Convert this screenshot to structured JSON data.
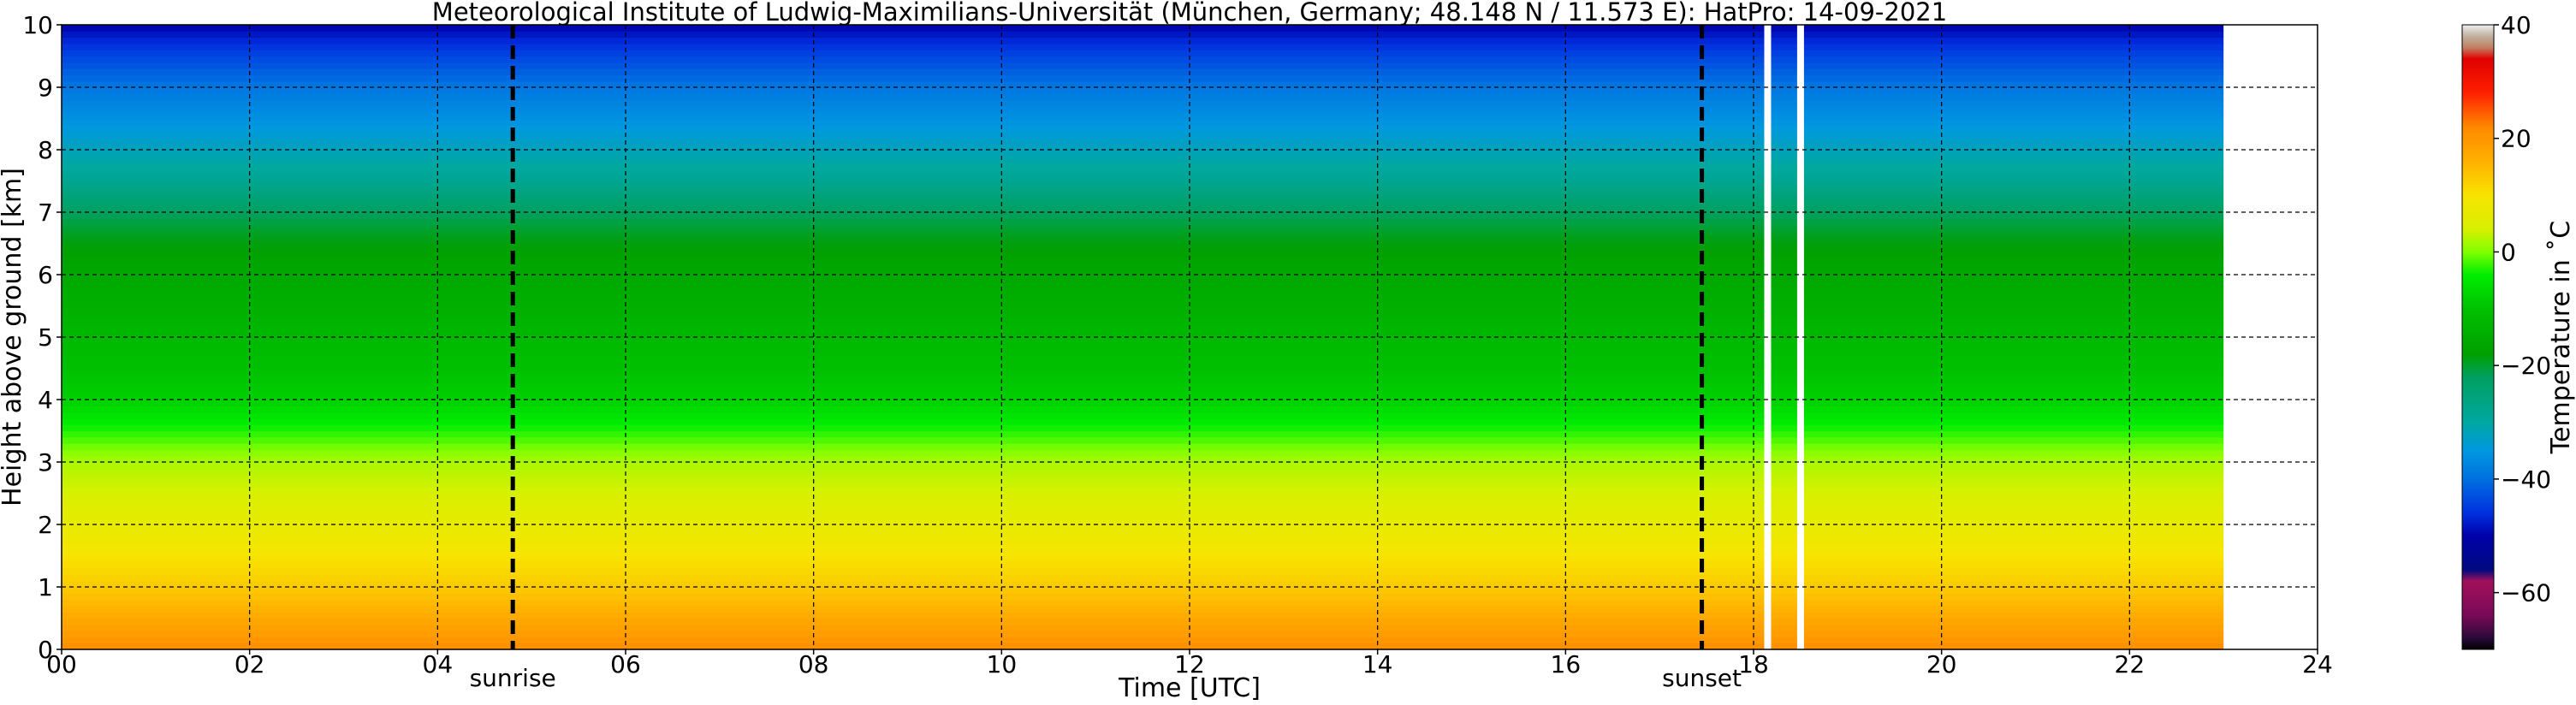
{
  "chart_data": {
    "type": "heatmap",
    "title": "Meteorological Institute of Ludwig-Maximilians-Universität (München, Germany; 48.148 N / 11.573 E):    HatPro: 14-09-2021",
    "xlabel": "Time [UTC]",
    "ylabel": "Height above ground [km]",
    "xlim": [
      0,
      24
    ],
    "ylim": [
      0,
      10
    ],
    "x_ticks": [
      "00",
      "02",
      "04",
      "06",
      "08",
      "10",
      "12",
      "14",
      "16",
      "18",
      "20",
      "22",
      "24"
    ],
    "y_ticks": [
      "0",
      "1",
      "2",
      "3",
      "4",
      "5",
      "6",
      "7",
      "8",
      "9",
      "10"
    ],
    "grid": true,
    "data_end_hour": 23.0,
    "missing_data_hours": [
      18.15,
      18.5
    ],
    "events": [
      {
        "label": "sunrise",
        "hour": 4.8
      },
      {
        "label": "sunset",
        "hour": 17.45
      }
    ],
    "temperature_profile": {
      "height_km": [
        0,
        0.5,
        1,
        1.5,
        2,
        2.5,
        3,
        3.5,
        4,
        5,
        6,
        6.6,
        7,
        7.5,
        8,
        8.5,
        9,
        9.3,
        9.7,
        10
      ],
      "temperature_C": [
        21,
        17,
        13,
        10,
        7,
        4,
        2,
        -3,
        -8,
        -12,
        -16,
        -19,
        -22,
        -28,
        -32,
        -36,
        -39,
        -42,
        -46,
        -50
      ]
    },
    "colorbar": {
      "label": "Temperature in $^\\circ$C",
      "label_text": "Temperature in ˚C",
      "range": [
        -70,
        40
      ],
      "ticks": [
        "40",
        "20",
        "0",
        "−20",
        "−40",
        "−60"
      ],
      "colors": [
        {
          "t": -70,
          "c": "#000000"
        },
        {
          "t": -68,
          "c": "#2a0a3a"
        },
        {
          "t": -64,
          "c": "#7a0a58"
        },
        {
          "t": -58,
          "c": "#a0105a"
        },
        {
          "t": -56,
          "c": "#000a80"
        },
        {
          "t": -50,
          "c": "#0000a8"
        },
        {
          "t": -46,
          "c": "#0030e0"
        },
        {
          "t": -40,
          "c": "#0070e0"
        },
        {
          "t": -35,
          "c": "#0098e0"
        },
        {
          "t": -30,
          "c": "#00a8a0"
        },
        {
          "t": -22,
          "c": "#00a060"
        },
        {
          "t": -18,
          "c": "#00a000"
        },
        {
          "t": -10,
          "c": "#00c000"
        },
        {
          "t": -4,
          "c": "#00ee00"
        },
        {
          "t": 0,
          "c": "#80ff00"
        },
        {
          "t": 4,
          "c": "#d8f000"
        },
        {
          "t": 10,
          "c": "#f8e400"
        },
        {
          "t": 16,
          "c": "#ffb000"
        },
        {
          "t": 22,
          "c": "#ff8800"
        },
        {
          "t": 28,
          "c": "#ff2000"
        },
        {
          "t": 34,
          "c": "#e00000"
        },
        {
          "t": 36,
          "c": "#c08060"
        },
        {
          "t": 38,
          "c": "#c0b0a0"
        },
        {
          "t": 40,
          "c": "#f0f0f0"
        }
      ]
    }
  }
}
